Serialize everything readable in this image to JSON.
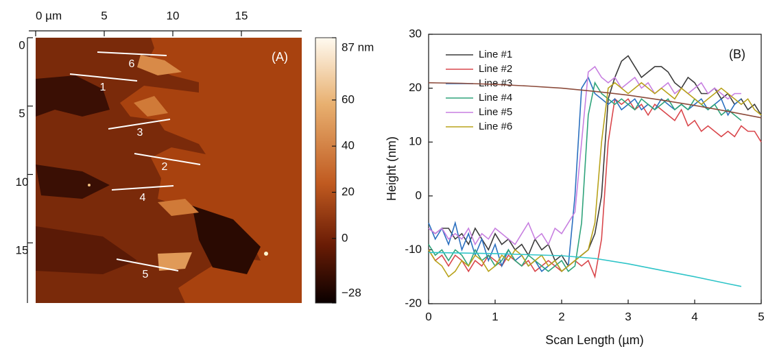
{
  "chart_data": [
    {
      "type": "image",
      "annotation": "(A)",
      "xlim": [
        0,
        19.4
      ],
      "xticks": [
        {
          "value": 0,
          "label": "0 µm"
        },
        5,
        10,
        15
      ],
      "ylim": [
        0,
        19.4
      ],
      "yticks": [
        0,
        5,
        10,
        15
      ],
      "colorbar": {
        "lim": [
          -28,
          87
        ],
        "ticks": [
          {
            "value": 87,
            "label": "87 nm"
          },
          60,
          40,
          20,
          0,
          {
            "value": -28,
            "label": "−28"
          }
        ]
      },
      "line_labels": [
        "6",
        "1",
        "3",
        "2",
        "4",
        "5"
      ]
    },
    {
      "type": "line",
      "annotation": "(B)",
      "xlabel": "Scan Length (µm)",
      "ylabel": "Height (nm)",
      "xlim": [
        0,
        5
      ],
      "xticks": [
        0,
        1,
        2,
        3,
        4,
        5
      ],
      "ylim": [
        -20,
        30
      ],
      "yticks": [
        -20,
        -10,
        0,
        10,
        20,
        30
      ],
      "legend": "upper-left",
      "x": [
        0,
        0.1,
        0.2,
        0.3,
        0.4,
        0.5,
        0.6,
        0.7,
        0.8,
        0.9,
        1,
        1.1,
        1.2,
        1.3,
        1.4,
        1.5,
        1.6,
        1.7,
        1.8,
        1.9,
        2,
        2.1,
        2.2,
        2.3,
        2.4,
        2.5,
        2.6,
        2.7,
        2.8,
        2.9,
        3,
        3.1,
        3.2,
        3.3,
        3.4,
        3.5,
        3.6,
        3.7,
        3.8,
        3.9,
        4,
        4.1,
        4.2,
        4.3,
        4.4,
        4.5,
        4.6,
        4.7,
        4.8,
        4.9,
        5
      ],
      "series": [
        {
          "name": "Line #1",
          "color": "#3a3a3a",
          "values": [
            -6,
            -7,
            -6,
            -6,
            -8,
            -7,
            -9,
            -6,
            -8,
            -10,
            -7,
            -9,
            -8,
            -10,
            -9,
            -11,
            -8,
            -10,
            -9,
            -12,
            -11,
            -13,
            -12,
            -11,
            -10,
            -7,
            0,
            18,
            22,
            25,
            26,
            24,
            22,
            23,
            24,
            24,
            23,
            21,
            20,
            22,
            21,
            19,
            19,
            20,
            18,
            19,
            17,
            18,
            16,
            17,
            15
          ]
        },
        {
          "name": "Line #2",
          "color": "#d9464b",
          "values": [
            -10,
            -12,
            -11,
            -13,
            -11,
            -12,
            -14,
            -12,
            -13,
            -11,
            -12,
            -13,
            -11,
            -12,
            -13,
            -12,
            -14,
            -13,
            -12,
            -13,
            -14,
            -13,
            -12,
            -13,
            -12,
            -15,
            -8,
            10,
            18,
            17,
            18,
            16,
            17,
            15,
            17,
            16,
            15,
            14,
            16,
            13,
            14,
            12,
            13,
            12,
            11,
            12,
            11,
            13,
            12,
            12,
            10
          ]
        },
        {
          "name": "Line #3",
          "color": "#2a6fbf",
          "values": [
            -5,
            -8,
            -6,
            -9,
            -5,
            -10,
            -7,
            -11,
            -8,
            -12,
            -9,
            -13,
            -10,
            -12,
            -11,
            -13,
            -12,
            -14,
            -13,
            -12,
            -14,
            -13,
            0,
            20,
            22,
            19,
            18,
            17,
            18,
            16,
            17,
            18,
            16,
            17,
            16,
            18,
            17,
            16,
            17,
            16,
            17,
            18,
            16,
            17,
            18,
            15,
            17,
            18,
            null,
            null,
            null
          ]
        },
        {
          "name": "Line #4",
          "color": "#2ea37a",
          "values": [
            -9,
            -11,
            -10,
            -12,
            -10,
            -11,
            -13,
            -10,
            -12,
            -11,
            -13,
            -12,
            -10,
            -12,
            -13,
            -11,
            -12,
            -13,
            -14,
            -13,
            -12,
            -14,
            -13,
            -5,
            15,
            21,
            19,
            18,
            17,
            18,
            17,
            16,
            18,
            17,
            16,
            17,
            18,
            16,
            17,
            16,
            18,
            17,
            16,
            17,
            15,
            16,
            15,
            14,
            null,
            null,
            null
          ]
        },
        {
          "name": "Line #5",
          "color": "#c77fe0",
          "values": [
            -6,
            -7,
            -6,
            -8,
            -7,
            -8,
            -6,
            -9,
            -7,
            -8,
            -6,
            -7,
            -8,
            -9,
            -7,
            -5,
            -8,
            -7,
            -9,
            -6,
            -7,
            -5,
            -3,
            10,
            23,
            24,
            22,
            21,
            22,
            20,
            21,
            22,
            20,
            21,
            19,
            20,
            21,
            19,
            20,
            19,
            20,
            21,
            19,
            20,
            19,
            18,
            19,
            19,
            null,
            null,
            null
          ]
        },
        {
          "name": "Line #6",
          "color": "#b8a21a",
          "values": [
            -10,
            -12,
            -13,
            -15,
            -14,
            -12,
            -13,
            -11,
            -12,
            -14,
            -13,
            -11,
            -12,
            -10,
            -11,
            -13,
            -12,
            -11,
            -13,
            -12,
            -14,
            -13,
            -12,
            -11,
            -10,
            -5,
            10,
            20,
            21,
            20,
            19,
            20,
            21,
            20,
            19,
            20,
            19,
            18,
            20,
            19,
            18,
            17,
            18,
            19,
            20,
            19,
            18,
            17,
            18,
            16,
            15
          ]
        },
        {
          "color": "#8b4a3a",
          "x": [
            0,
            0.5,
            1,
            1.5,
            2,
            2.5,
            3,
            3.5,
            4,
            4.5,
            5
          ],
          "values": [
            21,
            20.9,
            20.7,
            20.4,
            20,
            19.4,
            18.7,
            17.8,
            16.8,
            15.7,
            14.5
          ]
        },
        {
          "color": "#2ec4c8",
          "x": [
            0,
            0.5,
            1,
            1.5,
            2,
            2.5,
            3,
            3.5,
            4,
            4.5,
            4.7
          ],
          "values": [
            -10.5,
            -10.6,
            -10.7,
            -10.9,
            -11.1,
            -11.6,
            -12.6,
            -13.8,
            -15,
            -16.3,
            -16.8
          ]
        }
      ]
    }
  ]
}
